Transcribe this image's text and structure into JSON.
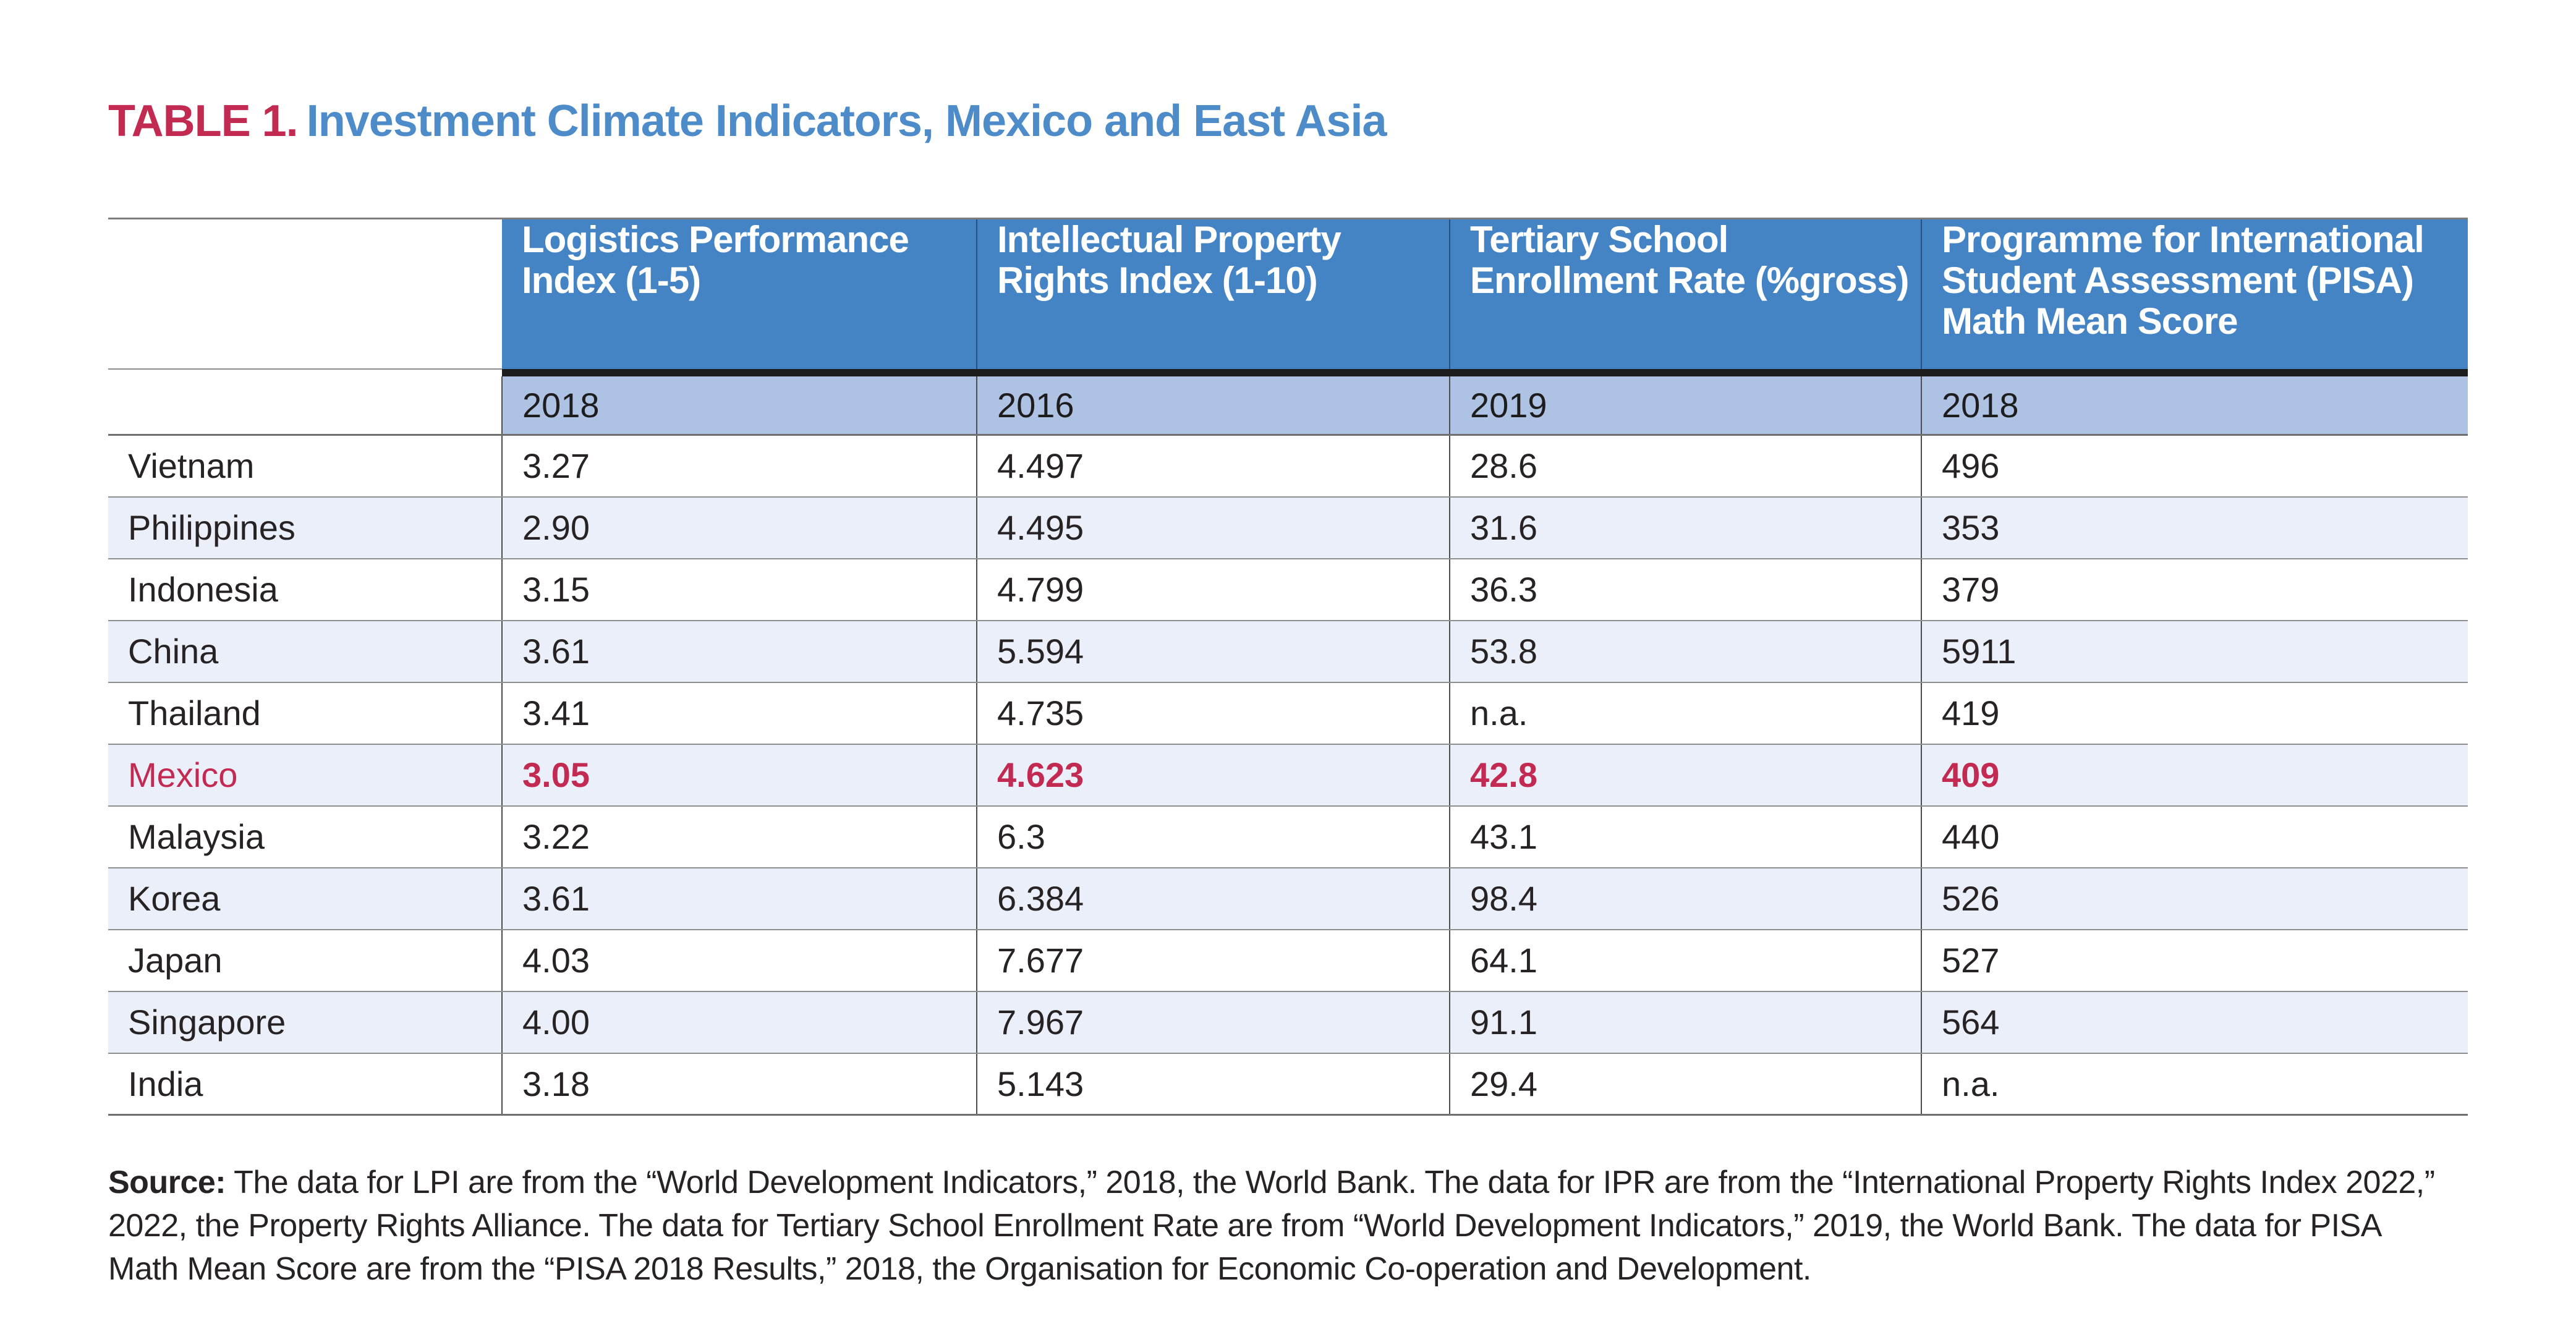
{
  "title": {
    "label": "TABLE 1.",
    "text": "Investment Climate Indicators, Mexico and East Asia"
  },
  "colors": {
    "accent_crimson": "#c22a52",
    "title_blue": "#4d8bc9",
    "header_blue": "#4484c4",
    "year_row_blue": "#aec2e4",
    "stripe_blue": "#ebeff9",
    "text_dark": "#272324",
    "header_underline": "#1d1d1d"
  },
  "table": {
    "columns": [
      {
        "header": "",
        "header_lines": [],
        "year": ""
      },
      {
        "header": "Logistics Performance Index (1-5)",
        "header_lines": [
          "Logistics Performance",
          "Index (1-5)"
        ],
        "year": "2018"
      },
      {
        "header": "Intellectual Property Rights Index (1-10)",
        "header_lines": [
          "Intellectual Property",
          "Rights Index (1-10)"
        ],
        "year": "2016"
      },
      {
        "header": "Tertiary School Enrollment Rate (%gross)",
        "header_lines": [
          "Tertiary School",
          "Enrollment Rate (%gross)"
        ],
        "year": "2019"
      },
      {
        "header": "Programme for International Student Assessment (PISA) Math Mean Score",
        "header_lines": [
          "Programme for International",
          "Student Assessment (PISA)",
          "Math Mean Score"
        ],
        "year": "2018"
      }
    ],
    "rows": [
      {
        "country": "Vietnam",
        "values": [
          "3.27",
          "4.497",
          "28.6",
          "496"
        ],
        "highlight": false
      },
      {
        "country": "Philippines",
        "values": [
          "2.90",
          "4.495",
          "31.6",
          "353"
        ],
        "highlight": false
      },
      {
        "country": "Indonesia",
        "values": [
          "3.15",
          "4.799",
          "36.3",
          "379"
        ],
        "highlight": false
      },
      {
        "country": "China",
        "values": [
          "3.61",
          "5.594",
          "53.8",
          "5911"
        ],
        "highlight": false
      },
      {
        "country": "Thailand",
        "values": [
          "3.41",
          "4.735",
          "n.a.",
          "419"
        ],
        "highlight": false
      },
      {
        "country": "Mexico",
        "values": [
          "3.05",
          "4.623",
          "42.8",
          "409"
        ],
        "highlight": true
      },
      {
        "country": "Malaysia",
        "values": [
          "3.22",
          "6.3",
          "43.1",
          "440"
        ],
        "highlight": false
      },
      {
        "country": "Korea",
        "values": [
          "3.61",
          "6.384",
          "98.4",
          "526"
        ],
        "highlight": false
      },
      {
        "country": "Japan",
        "values": [
          "4.03",
          "7.677",
          "64.1",
          "527"
        ],
        "highlight": false
      },
      {
        "country": "Singapore",
        "values": [
          "4.00",
          "7.967",
          "91.1",
          "564"
        ],
        "highlight": false
      },
      {
        "country": "India",
        "values": [
          "3.18",
          "5.143",
          "29.4",
          "n.a."
        ],
        "highlight": false
      }
    ]
  },
  "source": {
    "label": "Source:",
    "lines": [
      "The data for LPI are from the “World Development Indicators,” 2018, the World Bank. The data for IPR are from the “International Property Rights Index 2022,”",
      "2022, the Property Rights Alliance. The data for Tertiary School Enrollment Rate are from “World Development Indicators,” 2019, the World Bank. The data for PISA",
      "Math Mean Score are from the “PISA 2018 Results,” 2018, the Organisation for Economic Co-operation and Development."
    ]
  }
}
